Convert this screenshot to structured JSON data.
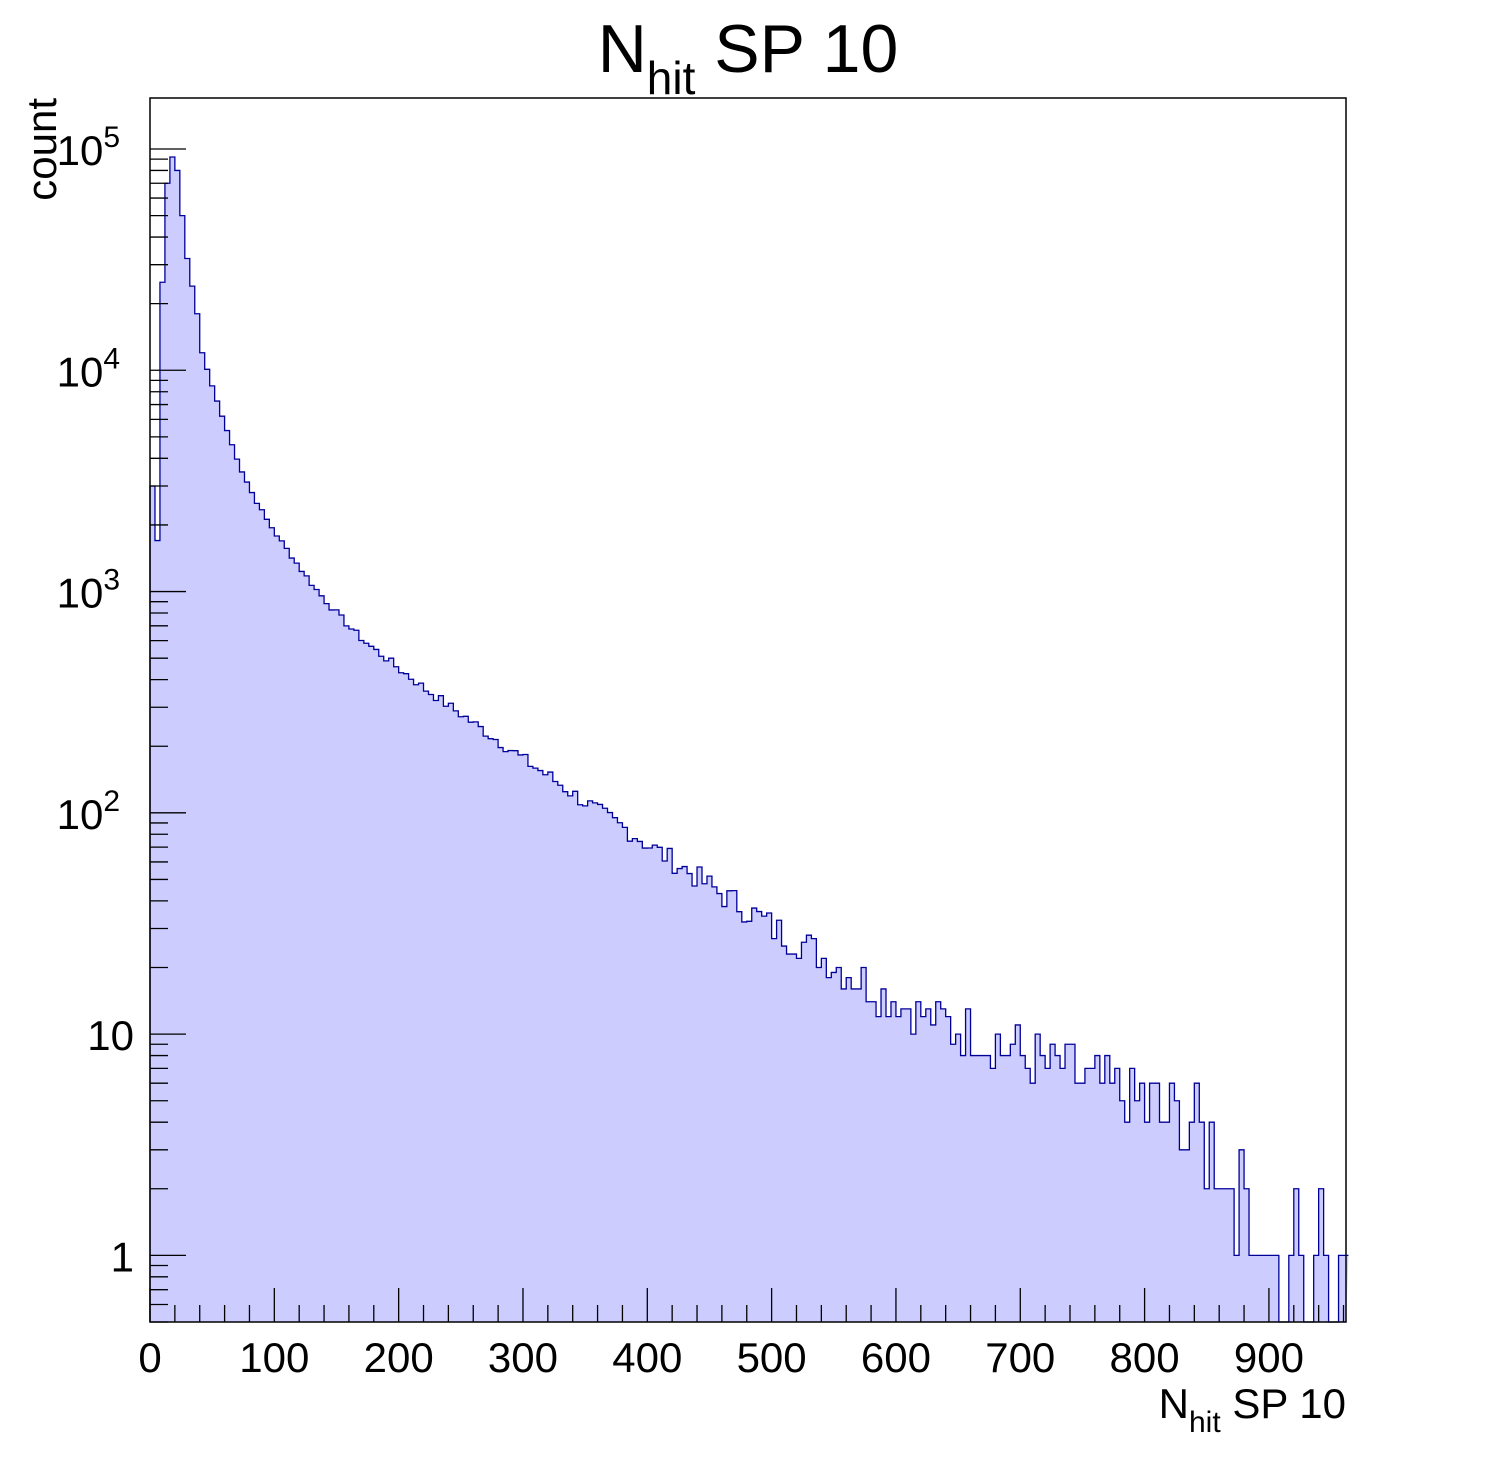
{
  "chart_data": {
    "type": "histogram",
    "title": {
      "main": "N",
      "sub": "hit",
      "rest": " SP 10"
    },
    "xlabel": {
      "main": "N",
      "sub": "hit",
      "rest": " SP 10"
    },
    "ylabel": "count",
    "xlim": [
      0,
      1000
    ],
    "ylim": [
      0.5,
      170000
    ],
    "yscale": "log",
    "x_ticks": [
      {
        "value": 0,
        "label": "0"
      },
      {
        "value": 100,
        "label": "100"
      },
      {
        "value": 200,
        "label": "200"
      },
      {
        "value": 300,
        "label": "300"
      },
      {
        "value": 400,
        "label": "400"
      },
      {
        "value": 500,
        "label": "500"
      },
      {
        "value": 600,
        "label": "600"
      },
      {
        "value": 700,
        "label": "700"
      },
      {
        "value": 800,
        "label": "800"
      },
      {
        "value": 900,
        "label": "900"
      }
    ],
    "y_ticks": [
      {
        "value": 1,
        "base": "1",
        "exp": ""
      },
      {
        "value": 10,
        "base": "10",
        "exp": ""
      },
      {
        "value": 100,
        "base": "10",
        "exp": "2"
      },
      {
        "value": 1000,
        "base": "10",
        "exp": "3"
      },
      {
        "value": 10000,
        "base": "10",
        "exp": "4"
      },
      {
        "value": 100000,
        "base": "10",
        "exp": "5"
      }
    ],
    "bin_width": 4,
    "series": [
      {
        "x_start": [
          0,
          4,
          8,
          12,
          16,
          20,
          24,
          28,
          32,
          36,
          40,
          48,
          56,
          64,
          72,
          80,
          90,
          100,
          110,
          120,
          130,
          140,
          150,
          160,
          170,
          180,
          190,
          200,
          210,
          220,
          230,
          240,
          250,
          260,
          270,
          280,
          290,
          300,
          310,
          320,
          330,
          340,
          350,
          360,
          370,
          380,
          390,
          400,
          410,
          420,
          430,
          440,
          450,
          460,
          470,
          480,
          490,
          500,
          510,
          520,
          530,
          540,
          550,
          560,
          570,
          580,
          590,
          600,
          610,
          620,
          630,
          640,
          650,
          660,
          670,
          680,
          690,
          700,
          710,
          720,
          730,
          740,
          750,
          760,
          770,
          780,
          790,
          800,
          810,
          820,
          830,
          840,
          850,
          860,
          870,
          880,
          890,
          900,
          910,
          920,
          930,
          940,
          950,
          960
        ],
        "counts": [
          3000,
          1700,
          25000,
          70000,
          92000,
          80000,
          50000,
          32000,
          24000,
          18000,
          12000,
          8500,
          6200,
          4600,
          3500,
          2800,
          2200,
          1800,
          1500,
          1250,
          1050,
          900,
          780,
          680,
          600,
          540,
          490,
          440,
          400,
          360,
          330,
          300,
          275,
          250,
          228,
          208,
          190,
          172,
          158,
          145,
          132,
          120,
          110,
          100,
          92,
          85,
          78,
          71,
          65,
          60,
          55,
          50,
          46,
          42,
          39,
          36,
          33,
          30,
          28,
          26,
          24,
          22,
          20,
          19,
          17.5,
          16,
          15,
          14,
          13,
          12,
          11.5,
          11,
          10.5,
          10,
          9.5,
          9,
          8.5,
          8,
          7.5,
          7,
          7,
          6.5,
          6,
          6,
          5.5,
          5,
          5,
          4.8,
          4.5,
          4.3,
          4,
          3.5,
          3,
          2.5,
          2,
          1.5,
          1,
          0.6,
          0,
          1,
          0,
          1,
          0,
          1
        ]
      }
    ],
    "fill_color": "#ccccff",
    "line_color": "#000099"
  }
}
